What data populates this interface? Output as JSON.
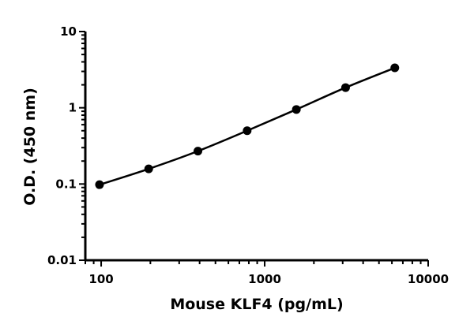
{
  "chart_data": {
    "type": "line",
    "xlabel": "Mouse KLF4 (pg/mL)",
    "ylabel": "O.D. (450 nm)",
    "xscale": "log",
    "yscale": "log",
    "xlim": [
      80,
      10000
    ],
    "ylim": [
      0.01,
      10
    ],
    "x_ticks": [
      {
        "value": 100,
        "label": "100"
      },
      {
        "value": 1000,
        "label": "1000"
      },
      {
        "value": 10000,
        "label": "10000"
      }
    ],
    "y_ticks": [
      {
        "value": 0.01,
        "label": "0.01"
      },
      {
        "value": 0.1,
        "label": "0.1"
      },
      {
        "value": 1,
        "label": "1"
      },
      {
        "value": 10,
        "label": "10"
      }
    ],
    "grid": false,
    "legend": "none",
    "series": [
      {
        "x": [
          97.7,
          195.3,
          390.6,
          781.3,
          1562.5,
          3125,
          6250
        ],
        "y": [
          0.098,
          0.158,
          0.27,
          0.5,
          0.95,
          1.84,
          3.34
        ],
        "color": "#000000",
        "marker": "circle",
        "fit_curve": true
      }
    ]
  }
}
